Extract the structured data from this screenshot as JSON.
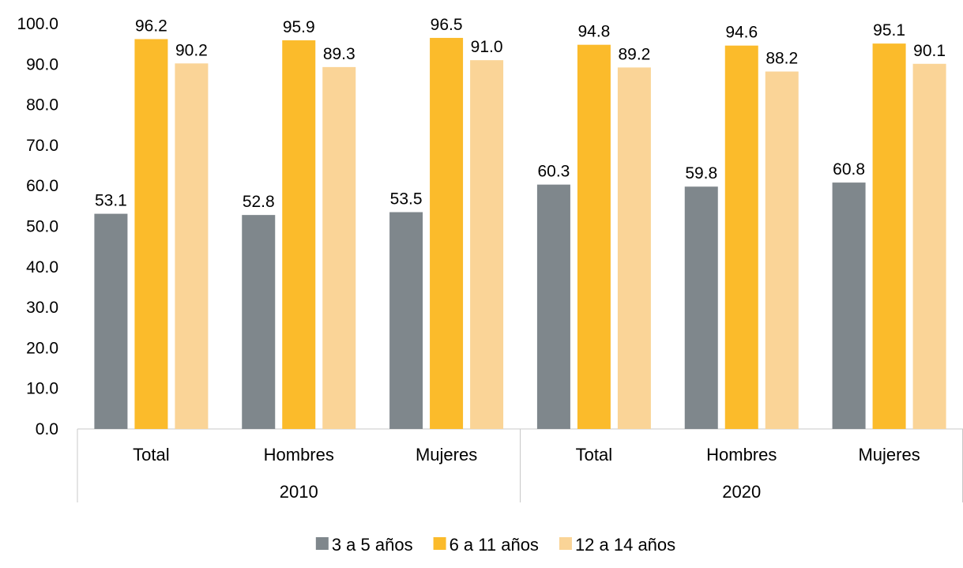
{
  "chart_data": {
    "type": "bar",
    "groups": [
      {
        "label": "2010",
        "categories": [
          "Total",
          "Hombres",
          "Mujeres"
        ]
      },
      {
        "label": "2020",
        "categories": [
          "Total",
          "Hombres",
          "Mujeres"
        ]
      }
    ],
    "series": [
      {
        "name": "3 a 5 años",
        "color": "#7f878c",
        "values": [
          53.1,
          52.8,
          53.5,
          60.3,
          59.8,
          60.8
        ],
        "labels": [
          "53.1",
          "52.8",
          "53.5",
          "60.3",
          "59.8",
          "60.8"
        ]
      },
      {
        "name": "6 a 11 años",
        "color": "#fbbb2b",
        "values": [
          96.2,
          95.9,
          96.5,
          94.8,
          94.6,
          95.1
        ],
        "labels": [
          "96.2",
          "95.9",
          "96.5",
          "94.8",
          "94.6",
          "95.1"
        ]
      },
      {
        "name": "12 a 14 años",
        "color": "#fad497",
        "values": [
          90.2,
          89.3,
          91.0,
          89.2,
          88.2,
          90.1
        ],
        "labels": [
          "90.2",
          "89.3",
          "91.0",
          "89.2",
          "88.2",
          "90.1"
        ]
      }
    ],
    "ylim": [
      0,
      100
    ],
    "yticks": [
      "0.0",
      "10.0",
      "20.0",
      "30.0",
      "40.0",
      "50.0",
      "60.0",
      "70.0",
      "80.0",
      "90.0",
      "100.0"
    ],
    "grid": false,
    "legend_position": "bottom"
  }
}
